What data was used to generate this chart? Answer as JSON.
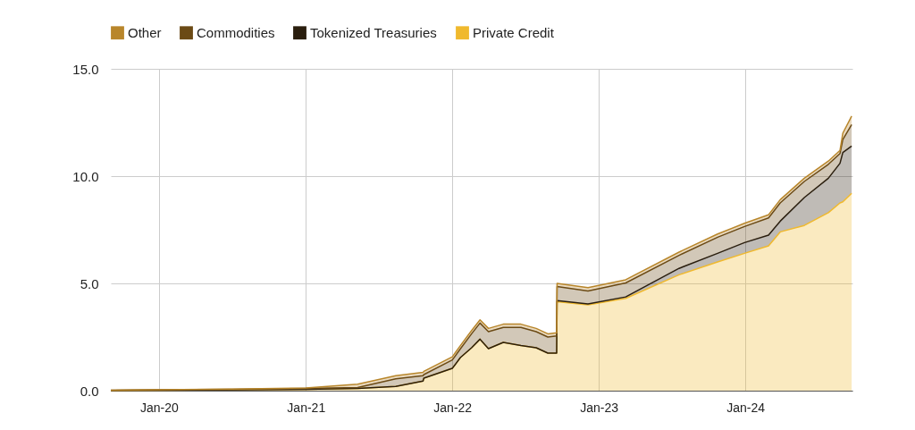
{
  "chart_data": {
    "type": "area",
    "stacked": true,
    "legend": "top",
    "grid": true,
    "line_style": "solid",
    "x": [
      "2019-09-03",
      "2020-01-01",
      "2020-07-01",
      "2021-01-01",
      "2021-05-10",
      "2021-08-13",
      "2021-10-20",
      "2021-10-22",
      "2022-01-01",
      "2022-01-21",
      "2022-02-18",
      "2022-03-11",
      "2022-04-01",
      "2022-05-08",
      "2022-06-21",
      "2022-07-29",
      "2022-08-27",
      "2022-09-18",
      "2022-09-19",
      "2022-12-05",
      "2023-03-09",
      "2023-07-20",
      "2023-10-24",
      "2023-12-30",
      "2024-02-28",
      "2024-03-28",
      "2024-05-27",
      "2024-07-26",
      "2024-08-24",
      "2024-08-31",
      "2024-09-22"
    ],
    "xlim": [
      "2019-09-03",
      "2024-09-24"
    ],
    "xticks": [
      {
        "value": "2020-01-01",
        "label": "Jan-20"
      },
      {
        "value": "2021-01-01",
        "label": "Jan-21"
      },
      {
        "value": "2022-01-01",
        "label": "Jan-22"
      },
      {
        "value": "2023-01-01",
        "label": "Jan-23"
      },
      {
        "value": "2024-01-01",
        "label": "Jan-24"
      }
    ],
    "ylim": [
      0,
      15
    ],
    "yticks": [
      {
        "value": 0,
        "label": "0.0"
      },
      {
        "value": 5,
        "label": "5.0"
      },
      {
        "value": 10,
        "label": "10.0"
      },
      {
        "value": 15,
        "label": "15.0"
      }
    ],
    "series": [
      {
        "name": "Private Credit",
        "color": "#f0b92d",
        "values": [
          0.01,
          0.02,
          0.04,
          0.06,
          0.1,
          0.2,
          0.45,
          0.58,
          1.04,
          1.54,
          2.0,
          2.4,
          1.96,
          2.25,
          2.1,
          2.0,
          1.75,
          1.75,
          4.15,
          4.0,
          4.3,
          5.4,
          6.0,
          6.4,
          6.75,
          7.4,
          7.7,
          8.3,
          8.75,
          8.8,
          9.2
        ]
      },
      {
        "name": "Tokenized Treasuries",
        "color": "#2a1e0e",
        "values": [
          0,
          0,
          0,
          0,
          0,
          0,
          0,
          0,
          0,
          0,
          0,
          0,
          0,
          0,
          0,
          0,
          0,
          0,
          0.05,
          0.04,
          0.07,
          0.3,
          0.4,
          0.5,
          0.5,
          0.5,
          1.3,
          1.6,
          1.85,
          2.3,
          2.2
        ]
      },
      {
        "name": "Commodities",
        "color": "#6b4a15",
        "values": [
          0.01,
          0.02,
          0.02,
          0.04,
          0.05,
          0.35,
          0.25,
          0.17,
          0.39,
          0.41,
          0.65,
          0.75,
          0.79,
          0.7,
          0.85,
          0.75,
          0.75,
          0.8,
          0.65,
          0.61,
          0.65,
          0.61,
          0.75,
          0.75,
          0.8,
          0.85,
          0.75,
          0.65,
          0.45,
          0.6,
          1.0
        ]
      },
      {
        "name": "Other",
        "color": "#b8862b",
        "values": [
          0,
          0,
          0.01,
          0.02,
          0.15,
          0.15,
          0.15,
          0.15,
          0.15,
          0.15,
          0.15,
          0.15,
          0.15,
          0.15,
          0.15,
          0.15,
          0.15,
          0.15,
          0.15,
          0.15,
          0.15,
          0.15,
          0.15,
          0.15,
          0.15,
          0.15,
          0.15,
          0.15,
          0.15,
          0.3,
          0.4
        ]
      }
    ]
  }
}
